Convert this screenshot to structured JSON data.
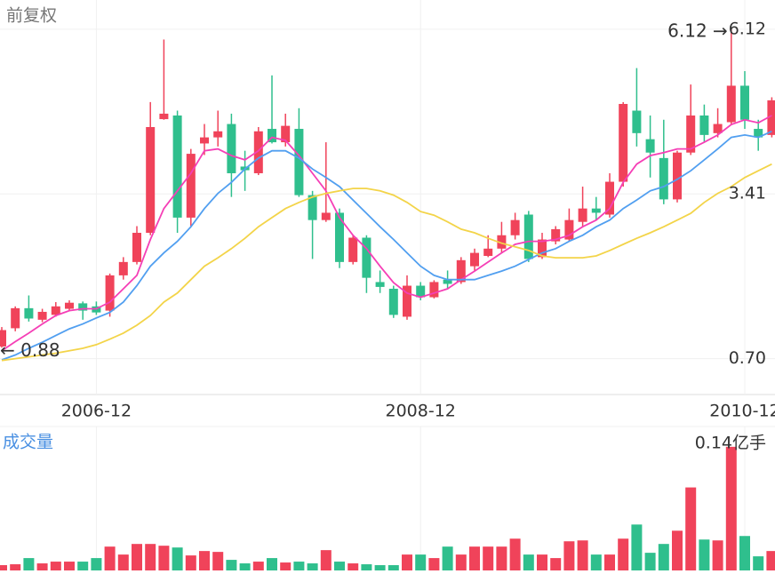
{
  "chart_data": [
    {
      "type": "candlestick",
      "title": "前复权",
      "categories": [
        null,
        null,
        null,
        null,
        null,
        null,
        null,
        "2006-12",
        null,
        null,
        null,
        null,
        null,
        null,
        null,
        null,
        null,
        null,
        null,
        null,
        null,
        null,
        null,
        null,
        null,
        null,
        null,
        null,
        null,
        null,
        null,
        "2008-12",
        null,
        null,
        null,
        null,
        null,
        null,
        null,
        null,
        null,
        null,
        null,
        null,
        null,
        null,
        null,
        null,
        null,
        null,
        null,
        null,
        null,
        null,
        null,
        "2010-12",
        null,
        null
      ],
      "open": [
        0.9,
        1.2,
        1.53,
        1.34,
        1.42,
        1.52,
        1.61,
        1.56,
        1.49,
        2.07,
        2.29,
        2.77,
        4.64,
        4.7,
        3.02,
        4.24,
        4.34,
        4.56,
        3.86,
        3.75,
        4.48,
        4.26,
        4.48,
        3.39,
        2.98,
        3.1,
        2.29,
        2.69,
        1.96,
        1.85,
        1.39,
        1.9,
        1.71,
        2.0,
        1.96,
        2.22,
        2.39,
        2.51,
        2.73,
        3.07,
        2.37,
        2.63,
        2.66,
        2.95,
        3.17,
        3.07,
        3.61,
        4.78,
        4.31,
        4.0,
        3.32,
        4.09,
        4.7,
        4.41,
        4.59,
        5.19,
        4.48,
        4.38
      ],
      "high": [
        1.22,
        1.56,
        1.74,
        1.52,
        1.63,
        1.66,
        1.64,
        1.64,
        2.1,
        2.37,
        2.88,
        4.92,
        5.95,
        4.78,
        4.15,
        4.56,
        4.78,
        4.73,
        4.12,
        4.51,
        5.36,
        4.73,
        4.82,
        3.46,
        4.26,
        3.17,
        2.73,
        2.73,
        2.15,
        1.9,
        2.07,
        1.96,
        1.99,
        2.15,
        2.37,
        2.51,
        2.73,
        2.95,
        3.1,
        3.13,
        2.77,
        2.88,
        3.17,
        3.53,
        3.36,
        3.75,
        4.92,
        5.48,
        4.7,
        4.63,
        4.12,
        5.21,
        4.88,
        4.82,
        6.12,
        5.43,
        4.63,
        5.0
      ],
      "low": [
        0.88,
        1.15,
        1.31,
        1.3,
        1.39,
        1.49,
        1.34,
        1.42,
        1.39,
        2.0,
        2.25,
        2.73,
        4.63,
        2.77,
        2.88,
        4.05,
        4.19,
        3.36,
        3.46,
        3.72,
        4.24,
        4.19,
        3.36,
        2.34,
        2.95,
        2.19,
        2.25,
        1.78,
        1.78,
        1.37,
        1.34,
        1.66,
        1.69,
        1.85,
        1.93,
        2.15,
        2.37,
        2.44,
        2.66,
        2.29,
        2.34,
        2.58,
        2.63,
        2.88,
        2.98,
        3.02,
        3.53,
        4.19,
        3.68,
        3.24,
        3.27,
        4.05,
        4.26,
        4.34,
        4.56,
        4.48,
        4.12,
        4.34
      ],
      "close": [
        1.17,
        1.53,
        1.36,
        1.47,
        1.56,
        1.62,
        1.49,
        1.46,
        2.07,
        2.29,
        2.77,
        4.51,
        4.73,
        3.02,
        4.07,
        4.34,
        4.44,
        3.75,
        3.8,
        4.44,
        4.26,
        4.53,
        3.39,
        2.98,
        3.1,
        2.29,
        2.69,
        2.03,
        1.88,
        1.42,
        1.9,
        1.71,
        1.96,
        1.93,
        2.32,
        2.44,
        2.51,
        2.73,
        2.98,
        2.34,
        2.66,
        2.83,
        2.98,
        3.17,
        3.1,
        3.61,
        4.89,
        4.41,
        4.09,
        3.32,
        4.09,
        4.7,
        4.38,
        4.56,
        5.19,
        4.63,
        4.34,
        4.95
      ],
      "up_color": "#f0435a",
      "down_color": "#2fbf8d",
      "lines": [
        {
          "color": "#f53fb6",
          "values": [
            0.83,
            0.98,
            1.12,
            1.27,
            1.41,
            1.49,
            1.52,
            1.52,
            1.63,
            1.85,
            2.07,
            2.66,
            3.17,
            3.46,
            3.75,
            4.12,
            4.15,
            4.04,
            3.97,
            4.12,
            4.34,
            4.29,
            4.04,
            3.75,
            3.46,
            3.02,
            2.73,
            2.51,
            2.22,
            1.95,
            1.78,
            1.71,
            1.78,
            1.85,
            2.0,
            2.14,
            2.29,
            2.44,
            2.58,
            2.63,
            2.63,
            2.66,
            2.73,
            2.87,
            2.98,
            3.17,
            3.6,
            3.9,
            4.04,
            4.09,
            4.15,
            4.15,
            4.26,
            4.38,
            4.55,
            4.63,
            4.58,
            4.7
          ]
        },
        {
          "color": "#519ff0",
          "values": [
            0.68,
            0.76,
            0.87,
            0.97,
            1.08,
            1.19,
            1.27,
            1.37,
            1.46,
            1.63,
            1.9,
            2.22,
            2.44,
            2.63,
            2.87,
            3.17,
            3.42,
            3.6,
            3.82,
            4.0,
            4.12,
            4.12,
            4.0,
            3.82,
            3.68,
            3.53,
            3.31,
            3.09,
            2.87,
            2.66,
            2.44,
            2.22,
            2.07,
            2.0,
            2.0,
            2.0,
            2.07,
            2.14,
            2.22,
            2.33,
            2.44,
            2.51,
            2.63,
            2.73,
            2.87,
            2.98,
            3.17,
            3.31,
            3.46,
            3.53,
            3.65,
            3.79,
            3.97,
            4.15,
            4.34,
            4.38,
            4.34,
            4.44
          ]
        },
        {
          "color": "#f3d449",
          "values": [
            0.67,
            0.7,
            0.73,
            0.76,
            0.79,
            0.83,
            0.87,
            0.93,
            1.02,
            1.12,
            1.25,
            1.41,
            1.63,
            1.78,
            2.0,
            2.22,
            2.36,
            2.51,
            2.68,
            2.87,
            3.02,
            3.17,
            3.27,
            3.36,
            3.42,
            3.46,
            3.5,
            3.5,
            3.46,
            3.39,
            3.27,
            3.12,
            3.06,
            2.95,
            2.83,
            2.77,
            2.68,
            2.6,
            2.54,
            2.48,
            2.39,
            2.36,
            2.36,
            2.36,
            2.39,
            2.48,
            2.58,
            2.68,
            2.77,
            2.87,
            2.98,
            3.09,
            3.27,
            3.42,
            3.53,
            3.68,
            3.79,
            3.9
          ]
        }
      ],
      "ylim": [
        0.11,
        6.6
      ],
      "yticks": [
        {
          "value": 0.7,
          "label": "0.70"
        },
        3.41,
        6.12
      ],
      "annotations": [
        "6.12 →",
        "← 0.88"
      ],
      "grid": true
    },
    {
      "type": "bar",
      "title": "成交量",
      "values": [
        0.006,
        0.007,
        0.014,
        0.008,
        0.01,
        0.01,
        0.01,
        0.014,
        0.027,
        0.018,
        0.03,
        0.03,
        0.028,
        0.026,
        0.017,
        0.022,
        0.021,
        0.012,
        0.008,
        0.01,
        0.014,
        0.009,
        0.01,
        0.008,
        0.023,
        0.01,
        0.008,
        0.007,
        0.006,
        0.006,
        0.018,
        0.018,
        0.014,
        0.027,
        0.018,
        0.027,
        0.027,
        0.027,
        0.036,
        0.018,
        0.018,
        0.014,
        0.033,
        0.034,
        0.018,
        0.018,
        0.036,
        0.052,
        0.02,
        0.03,
        0.045,
        0.094,
        0.035,
        0.034,
        0.14,
        0.039,
        0.016,
        0.022
      ],
      "ylim": [
        0,
        0.163
      ],
      "yticks": [
        {
          "value": 0.14,
          "label": "0.14亿手"
        }
      ],
      "grid": false
    }
  ]
}
